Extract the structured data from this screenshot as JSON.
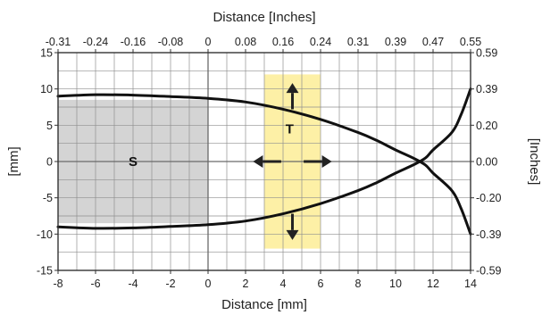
{
  "chart_data": {
    "type": "line",
    "title": "",
    "xlabel": "Distance [mm]",
    "ylabel": "[mm]",
    "x2label": "Distance [Inches]",
    "y2label": "[Inches]",
    "xlim": [
      -8,
      14
    ],
    "ylim": [
      -15,
      15
    ],
    "grid": true,
    "x_ticks": [
      -8,
      -6,
      -4,
      -2,
      0,
      2,
      4,
      6,
      8,
      10,
      12,
      14
    ],
    "x_tick_labels": [
      "-8",
      "-6",
      "-4",
      "-2",
      "0",
      "2",
      "4",
      "6",
      "8",
      "10",
      "12",
      "14"
    ],
    "y_ticks": [
      -15,
      -10,
      -5,
      0,
      5,
      10,
      15
    ],
    "y_tick_labels": [
      "-15",
      "-10",
      "-5",
      "0",
      "5",
      "10",
      "15"
    ],
    "x2_tick_labels": [
      "-0.31",
      "-0.24",
      "-0.16",
      "-0.08",
      "0",
      "0.08",
      "0.16",
      "0.24",
      "0.31",
      "0.39",
      "0.47",
      "0.55"
    ],
    "y2_ticks": [
      -15,
      -10,
      -5,
      0,
      5,
      10,
      15
    ],
    "y2_tick_labels": [
      "-0.59",
      "-0.39",
      "-0.20",
      "0.00",
      "0.20",
      "0.39",
      "0.59"
    ],
    "series": [
      {
        "color": "#111111",
        "x": [
          -8,
          -6,
          -4,
          -2,
          0,
          2,
          4,
          6,
          8,
          9,
          10,
          11,
          11.6,
          12,
          13,
          13.5,
          14
        ],
        "y": [
          9.0,
          9.2,
          9.15,
          8.95,
          8.7,
          8.2,
          7.2,
          5.8,
          4.0,
          2.9,
          1.6,
          0.4,
          -0.5,
          -1.6,
          -4.0,
          -6.5,
          -10.0
        ]
      },
      {
        "color": "#111111",
        "x": [
          -8,
          -6,
          -4,
          -2,
          0,
          2,
          4,
          6,
          8,
          9,
          10,
          11,
          11.6,
          12,
          13,
          13.5,
          14
        ],
        "y": [
          -9.0,
          -9.2,
          -9.15,
          -8.95,
          -8.7,
          -8.2,
          -7.2,
          -5.8,
          -4.0,
          -2.9,
          -1.6,
          -0.4,
          0.5,
          1.6,
          4.0,
          6.5,
          10.0
        ]
      }
    ],
    "regions": [
      {
        "label": "S",
        "x": [
          -8,
          0
        ],
        "y": [
          -8.5,
          8.5
        ],
        "color": "#d4d4d4",
        "label_pos": [
          -4,
          0
        ]
      },
      {
        "label": "T",
        "x": [
          3,
          6
        ],
        "y": [
          -12,
          12
        ],
        "color": "#fdf0a6",
        "label_pos": [
          4.35,
          4.5
        ]
      }
    ],
    "arrows": [
      {
        "from": [
          4.5,
          7.2
        ],
        "to": [
          4.5,
          10.8
        ],
        "color": "#222222"
      },
      {
        "from": [
          4.5,
          -7.2
        ],
        "to": [
          4.5,
          -10.8
        ],
        "color": "#222222"
      },
      {
        "from": [
          3.9,
          0
        ],
        "to": [
          2.4,
          0
        ],
        "color": "#222222"
      },
      {
        "from": [
          5.1,
          0
        ],
        "to": [
          6.6,
          0
        ],
        "color": "#222222"
      }
    ]
  }
}
